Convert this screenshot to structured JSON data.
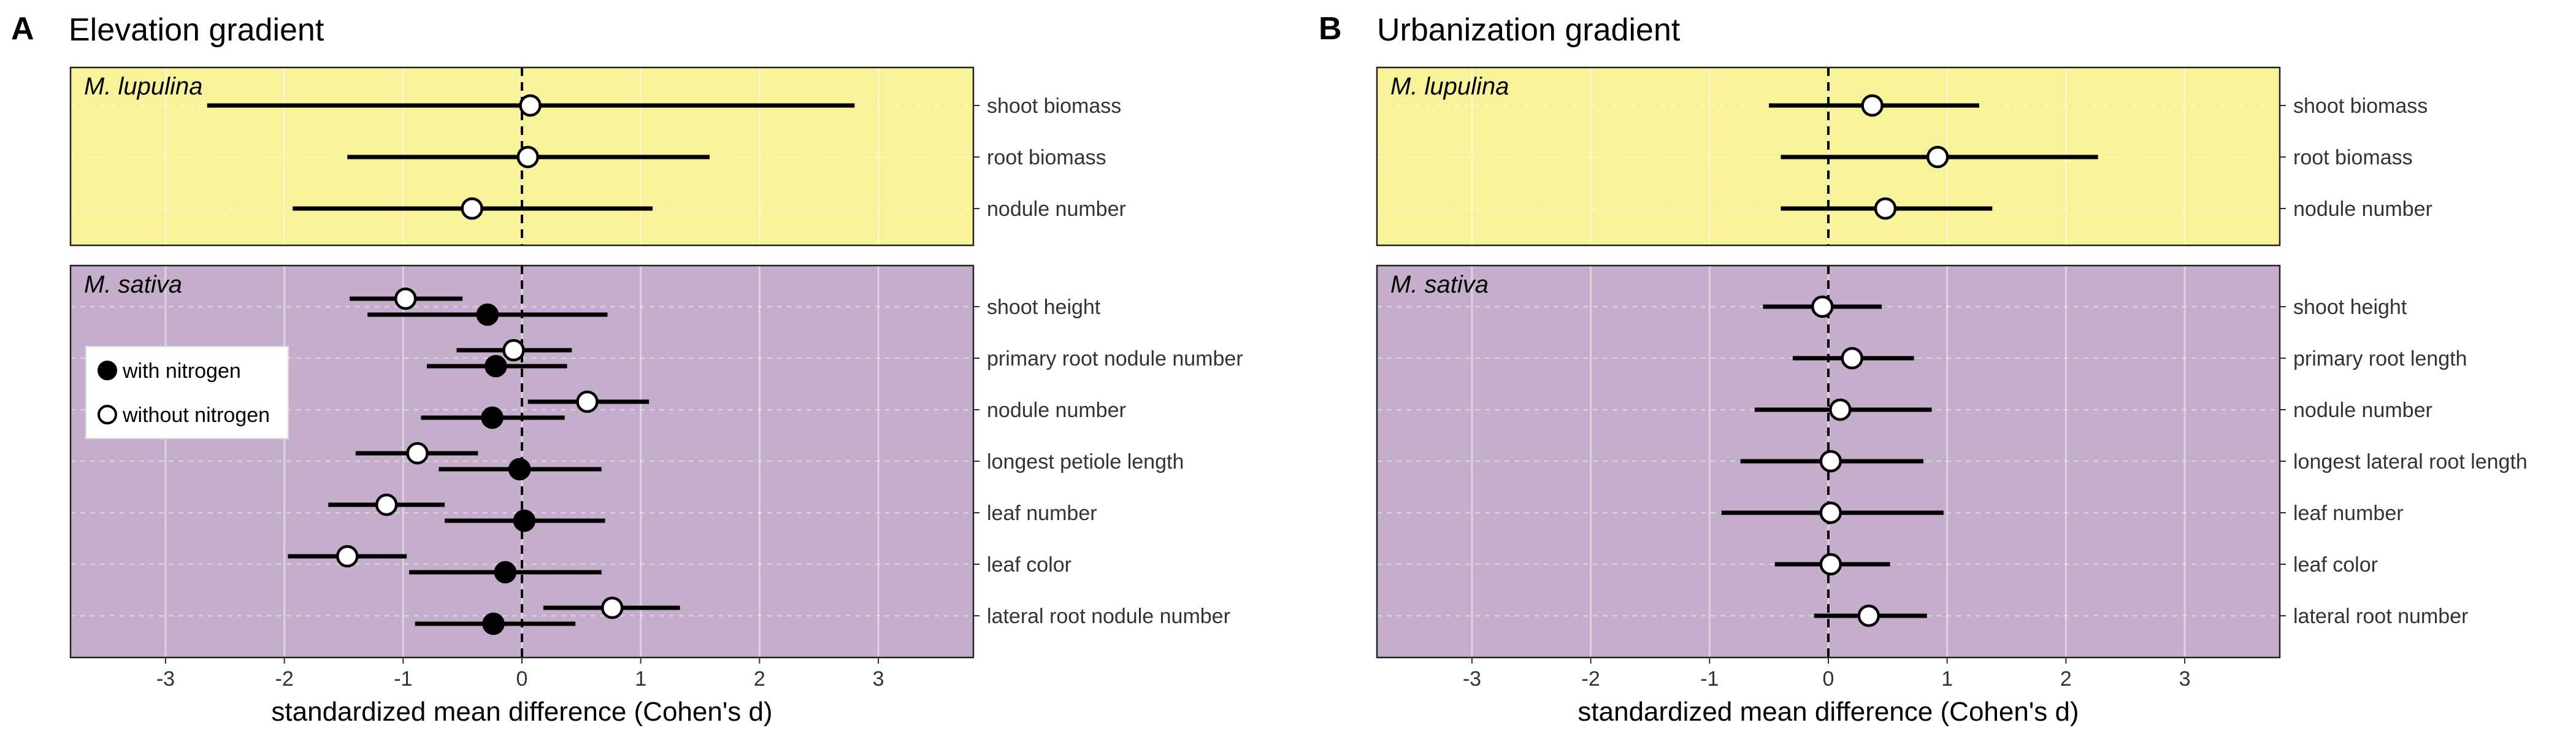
{
  "colors": {
    "lupulina_bg": "#f8f39a",
    "sativa_bg": "#c5aecb",
    "grid": "rgba(255,255,255,0.45)",
    "panel_border": "#222222",
    "mark": "#000000"
  },
  "legend": {
    "placement": "inside-left of M. sativa facet, Panel A",
    "with_nitrogen": "with nitrogen",
    "without_nitrogen": "without nitrogen"
  },
  "chart_data": [
    {
      "type": "forest",
      "letter": "A",
      "title": "Elevation gradient",
      "xlabel": "standardized mean difference (Cohen's d)",
      "xlim": [
        -3.8,
        3.8
      ],
      "xticks": [
        -3,
        -2,
        -1,
        0,
        1,
        2,
        3
      ],
      "reference_line": 0,
      "grid": true,
      "facets": [
        {
          "species": "M. lupulina",
          "traits": [
            "shoot biomass",
            "root biomass",
            "nodule number"
          ],
          "points": [
            {
              "trait": "shoot biomass",
              "group": "without_nitrogen",
              "d": 0.07,
              "lo": -2.65,
              "hi": 2.8
            },
            {
              "trait": "root biomass",
              "group": "without_nitrogen",
              "d": 0.05,
              "lo": -1.47,
              "hi": 1.58
            },
            {
              "trait": "nodule number",
              "group": "without_nitrogen",
              "d": -0.42,
              "lo": -1.93,
              "hi": 1.1
            }
          ]
        },
        {
          "species": "M. sativa",
          "traits": [
            "shoot height",
            "primary root nodule number",
            "nodule number",
            "longest petiole length",
            "leaf number",
            "leaf color",
            "lateral root nodule number"
          ],
          "points": [
            {
              "trait": "shoot height",
              "group": "without_nitrogen",
              "d": -0.98,
              "lo": -1.45,
              "hi": -0.5
            },
            {
              "trait": "shoot height",
              "group": "with_nitrogen",
              "d": -0.29,
              "lo": -1.3,
              "hi": 0.72
            },
            {
              "trait": "primary root nodule number",
              "group": "without_nitrogen",
              "d": -0.07,
              "lo": -0.55,
              "hi": 0.42
            },
            {
              "trait": "primary root nodule number",
              "group": "with_nitrogen",
              "d": -0.22,
              "lo": -0.8,
              "hi": 0.38
            },
            {
              "trait": "nodule number",
              "group": "without_nitrogen",
              "d": 0.55,
              "lo": 0.05,
              "hi": 1.07
            },
            {
              "trait": "nodule number",
              "group": "with_nitrogen",
              "d": -0.25,
              "lo": -0.85,
              "hi": 0.36
            },
            {
              "trait": "longest petiole length",
              "group": "without_nitrogen",
              "d": -0.88,
              "lo": -1.4,
              "hi": -0.37
            },
            {
              "trait": "longest petiole length",
              "group": "with_nitrogen",
              "d": -0.02,
              "lo": -0.7,
              "hi": 0.67
            },
            {
              "trait": "leaf number",
              "group": "without_nitrogen",
              "d": -1.14,
              "lo": -1.63,
              "hi": -0.65
            },
            {
              "trait": "leaf number",
              "group": "with_nitrogen",
              "d": 0.02,
              "lo": -0.65,
              "hi": 0.7
            },
            {
              "trait": "leaf color",
              "group": "without_nitrogen",
              "d": -1.47,
              "lo": -1.97,
              "hi": -0.97
            },
            {
              "trait": "leaf color",
              "group": "with_nitrogen",
              "d": -0.14,
              "lo": -0.95,
              "hi": 0.67
            },
            {
              "trait": "lateral root nodule number",
              "group": "without_nitrogen",
              "d": 0.76,
              "lo": 0.18,
              "hi": 1.33
            },
            {
              "trait": "lateral root nodule number",
              "group": "with_nitrogen",
              "d": -0.24,
              "lo": -0.9,
              "hi": 0.45
            }
          ]
        }
      ]
    },
    {
      "type": "forest",
      "letter": "B",
      "title": "Urbanization gradient",
      "xlabel": "standardized mean difference (Cohen's d)",
      "xlim": [
        -3.8,
        3.8
      ],
      "xticks": [
        -3,
        -2,
        -1,
        0,
        1,
        2,
        3
      ],
      "reference_line": 0,
      "grid": true,
      "facets": [
        {
          "species": "M. lupulina",
          "traits": [
            "shoot biomass",
            "root biomass",
            "nodule number"
          ],
          "points": [
            {
              "trait": "shoot biomass",
              "group": "without_nitrogen",
              "d": 0.37,
              "lo": -0.5,
              "hi": 1.27
            },
            {
              "trait": "root biomass",
              "group": "without_nitrogen",
              "d": 0.92,
              "lo": -0.4,
              "hi": 2.27
            },
            {
              "trait": "nodule number",
              "group": "without_nitrogen",
              "d": 0.48,
              "lo": -0.4,
              "hi": 1.38
            }
          ]
        },
        {
          "species": "M. sativa",
          "traits": [
            "shoot height",
            "primary root length",
            "nodule number",
            "longest lateral root length",
            "leaf number",
            "leaf color",
            "lateral root number"
          ],
          "points": [
            {
              "trait": "shoot height",
              "group": "without_nitrogen",
              "d": -0.05,
              "lo": -0.55,
              "hi": 0.45
            },
            {
              "trait": "primary root length",
              "group": "without_nitrogen",
              "d": 0.2,
              "lo": -0.3,
              "hi": 0.72
            },
            {
              "trait": "nodule number",
              "group": "without_nitrogen",
              "d": 0.1,
              "lo": -0.62,
              "hi": 0.87
            },
            {
              "trait": "longest lateral root length",
              "group": "without_nitrogen",
              "d": 0.02,
              "lo": -0.74,
              "hi": 0.8
            },
            {
              "trait": "leaf number",
              "group": "without_nitrogen",
              "d": 0.02,
              "lo": -0.9,
              "hi": 0.97
            },
            {
              "trait": "leaf color",
              "group": "without_nitrogen",
              "d": 0.02,
              "lo": -0.45,
              "hi": 0.52
            },
            {
              "trait": "lateral root number",
              "group": "without_nitrogen",
              "d": 0.34,
              "lo": -0.12,
              "hi": 0.83
            }
          ]
        }
      ]
    }
  ]
}
